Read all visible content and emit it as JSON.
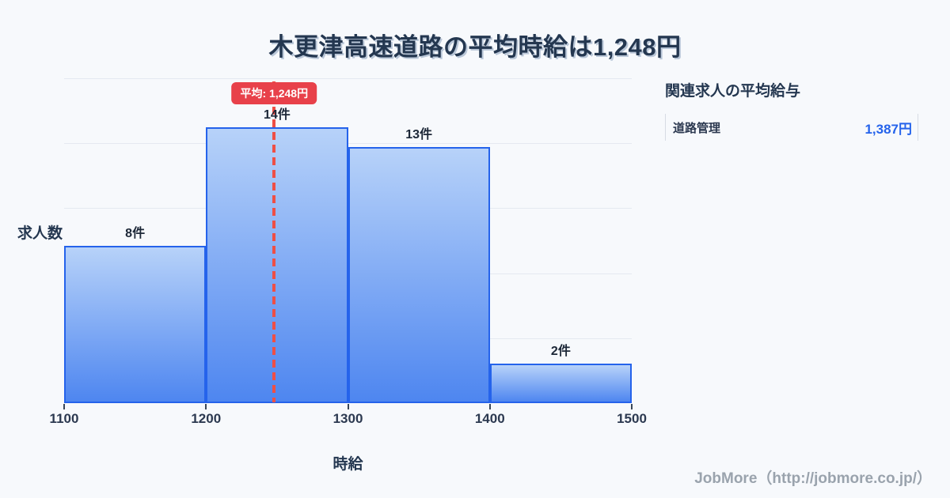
{
  "title": "木更津高速道路の平均時給は1,248円",
  "chart_data": {
    "type": "bar",
    "title": "木更津高速道路の平均時給は1,248円",
    "categories": [
      "1100-1200",
      "1200-1300",
      "1300-1400",
      "1400-1500"
    ],
    "values": [
      8,
      14,
      13,
      2
    ],
    "bar_labels": [
      "8件",
      "14件",
      "13件",
      "2件"
    ],
    "x_tick_labels": [
      "1100",
      "1200",
      "1300",
      "1400",
      "1500"
    ],
    "xlabel": "時給",
    "ylabel": "求人数",
    "xlim": [
      1100,
      1500
    ],
    "ylim": [
      0,
      16.5
    ],
    "grid": "horizontal",
    "gridline_count": 5,
    "mean": {
      "value": 1248,
      "label": "平均: 1,248円"
    }
  },
  "side_panel": {
    "heading": "関連求人の平均給与",
    "rows": [
      {
        "label": "道路管理",
        "value": "1,387円"
      }
    ]
  },
  "footer": {
    "credit": "JobMore（http://jobmore.co.jp/）"
  },
  "colors": {
    "background": "#f7f9fc",
    "ink": "#243750",
    "bar_border": "#2563eb",
    "bar_gradient_top": "#b7d2f9",
    "bar_gradient_bottom": "#4e86f0",
    "accent_red": "#e8414a",
    "mean_line_red": "#ee4f46",
    "value_blue": "#2563eb",
    "gridline": "#e5e9f1",
    "credit_gray": "#9aa3ad"
  }
}
